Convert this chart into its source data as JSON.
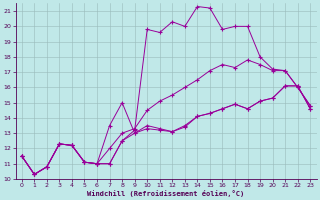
{
  "xlabel": "Windchill (Refroidissement éolien,°C)",
  "xlim": [
    -0.5,
    23.5
  ],
  "ylim": [
    10,
    21.5
  ],
  "xticks": [
    0,
    1,
    2,
    3,
    4,
    5,
    6,
    7,
    8,
    9,
    10,
    11,
    12,
    13,
    14,
    15,
    16,
    17,
    18,
    19,
    20,
    21,
    22,
    23
  ],
  "yticks": [
    10,
    11,
    12,
    13,
    14,
    15,
    16,
    17,
    18,
    19,
    20,
    21
  ],
  "background_color": "#c0e8e8",
  "line_color": "#990099",
  "grid_color": "#99bbbb",
  "line1_x": [
    0,
    1,
    2,
    3,
    4,
    5,
    6,
    7,
    8,
    9,
    10,
    11,
    12,
    13,
    14,
    15,
    16,
    17,
    18,
    19,
    20,
    21,
    22,
    23
  ],
  "line1_y": [
    11.5,
    10.3,
    10.8,
    12.3,
    12.2,
    11.1,
    11.0,
    11.0,
    12.5,
    13.0,
    13.3,
    13.2,
    13.1,
    13.4,
    14.1,
    14.3,
    14.6,
    14.9,
    14.6,
    15.1,
    15.3,
    16.1,
    16.1,
    14.6
  ],
  "line2_x": [
    0,
    1,
    2,
    3,
    4,
    5,
    6,
    7,
    8,
    9,
    10,
    11,
    12,
    13,
    14,
    15,
    16,
    17,
    18,
    19,
    20,
    21,
    22,
    23
  ],
  "line2_y": [
    11.5,
    10.3,
    10.8,
    12.3,
    12.2,
    11.1,
    11.0,
    12.0,
    13.0,
    13.3,
    14.5,
    15.1,
    15.5,
    16.0,
    16.5,
    17.1,
    17.5,
    17.3,
    17.8,
    17.5,
    17.1,
    17.1,
    16.0,
    14.8
  ],
  "line3_x": [
    0,
    1,
    2,
    3,
    4,
    5,
    6,
    7,
    8,
    9,
    10,
    11,
    12,
    13,
    14,
    15,
    16,
    17,
    18,
    19,
    20,
    21,
    22,
    23
  ],
  "line3_y": [
    11.5,
    10.3,
    10.8,
    12.3,
    12.2,
    11.1,
    11.0,
    13.5,
    15.0,
    13.0,
    13.5,
    13.3,
    13.1,
    13.5,
    14.1,
    14.3,
    14.6,
    14.9,
    14.6,
    15.1,
    15.3,
    16.1,
    16.1,
    14.6
  ],
  "line4_x": [
    0,
    1,
    2,
    3,
    4,
    5,
    6,
    7,
    8,
    9,
    10,
    11,
    12,
    13,
    14,
    15,
    16,
    17,
    18,
    19,
    20,
    21,
    22,
    23
  ],
  "line4_y": [
    11.5,
    10.3,
    10.8,
    12.3,
    12.2,
    11.1,
    11.0,
    11.0,
    12.5,
    13.2,
    19.8,
    19.6,
    20.3,
    20.0,
    21.3,
    21.2,
    19.8,
    20.0,
    20.0,
    18.0,
    17.2,
    17.1,
    16.0,
    14.8
  ]
}
